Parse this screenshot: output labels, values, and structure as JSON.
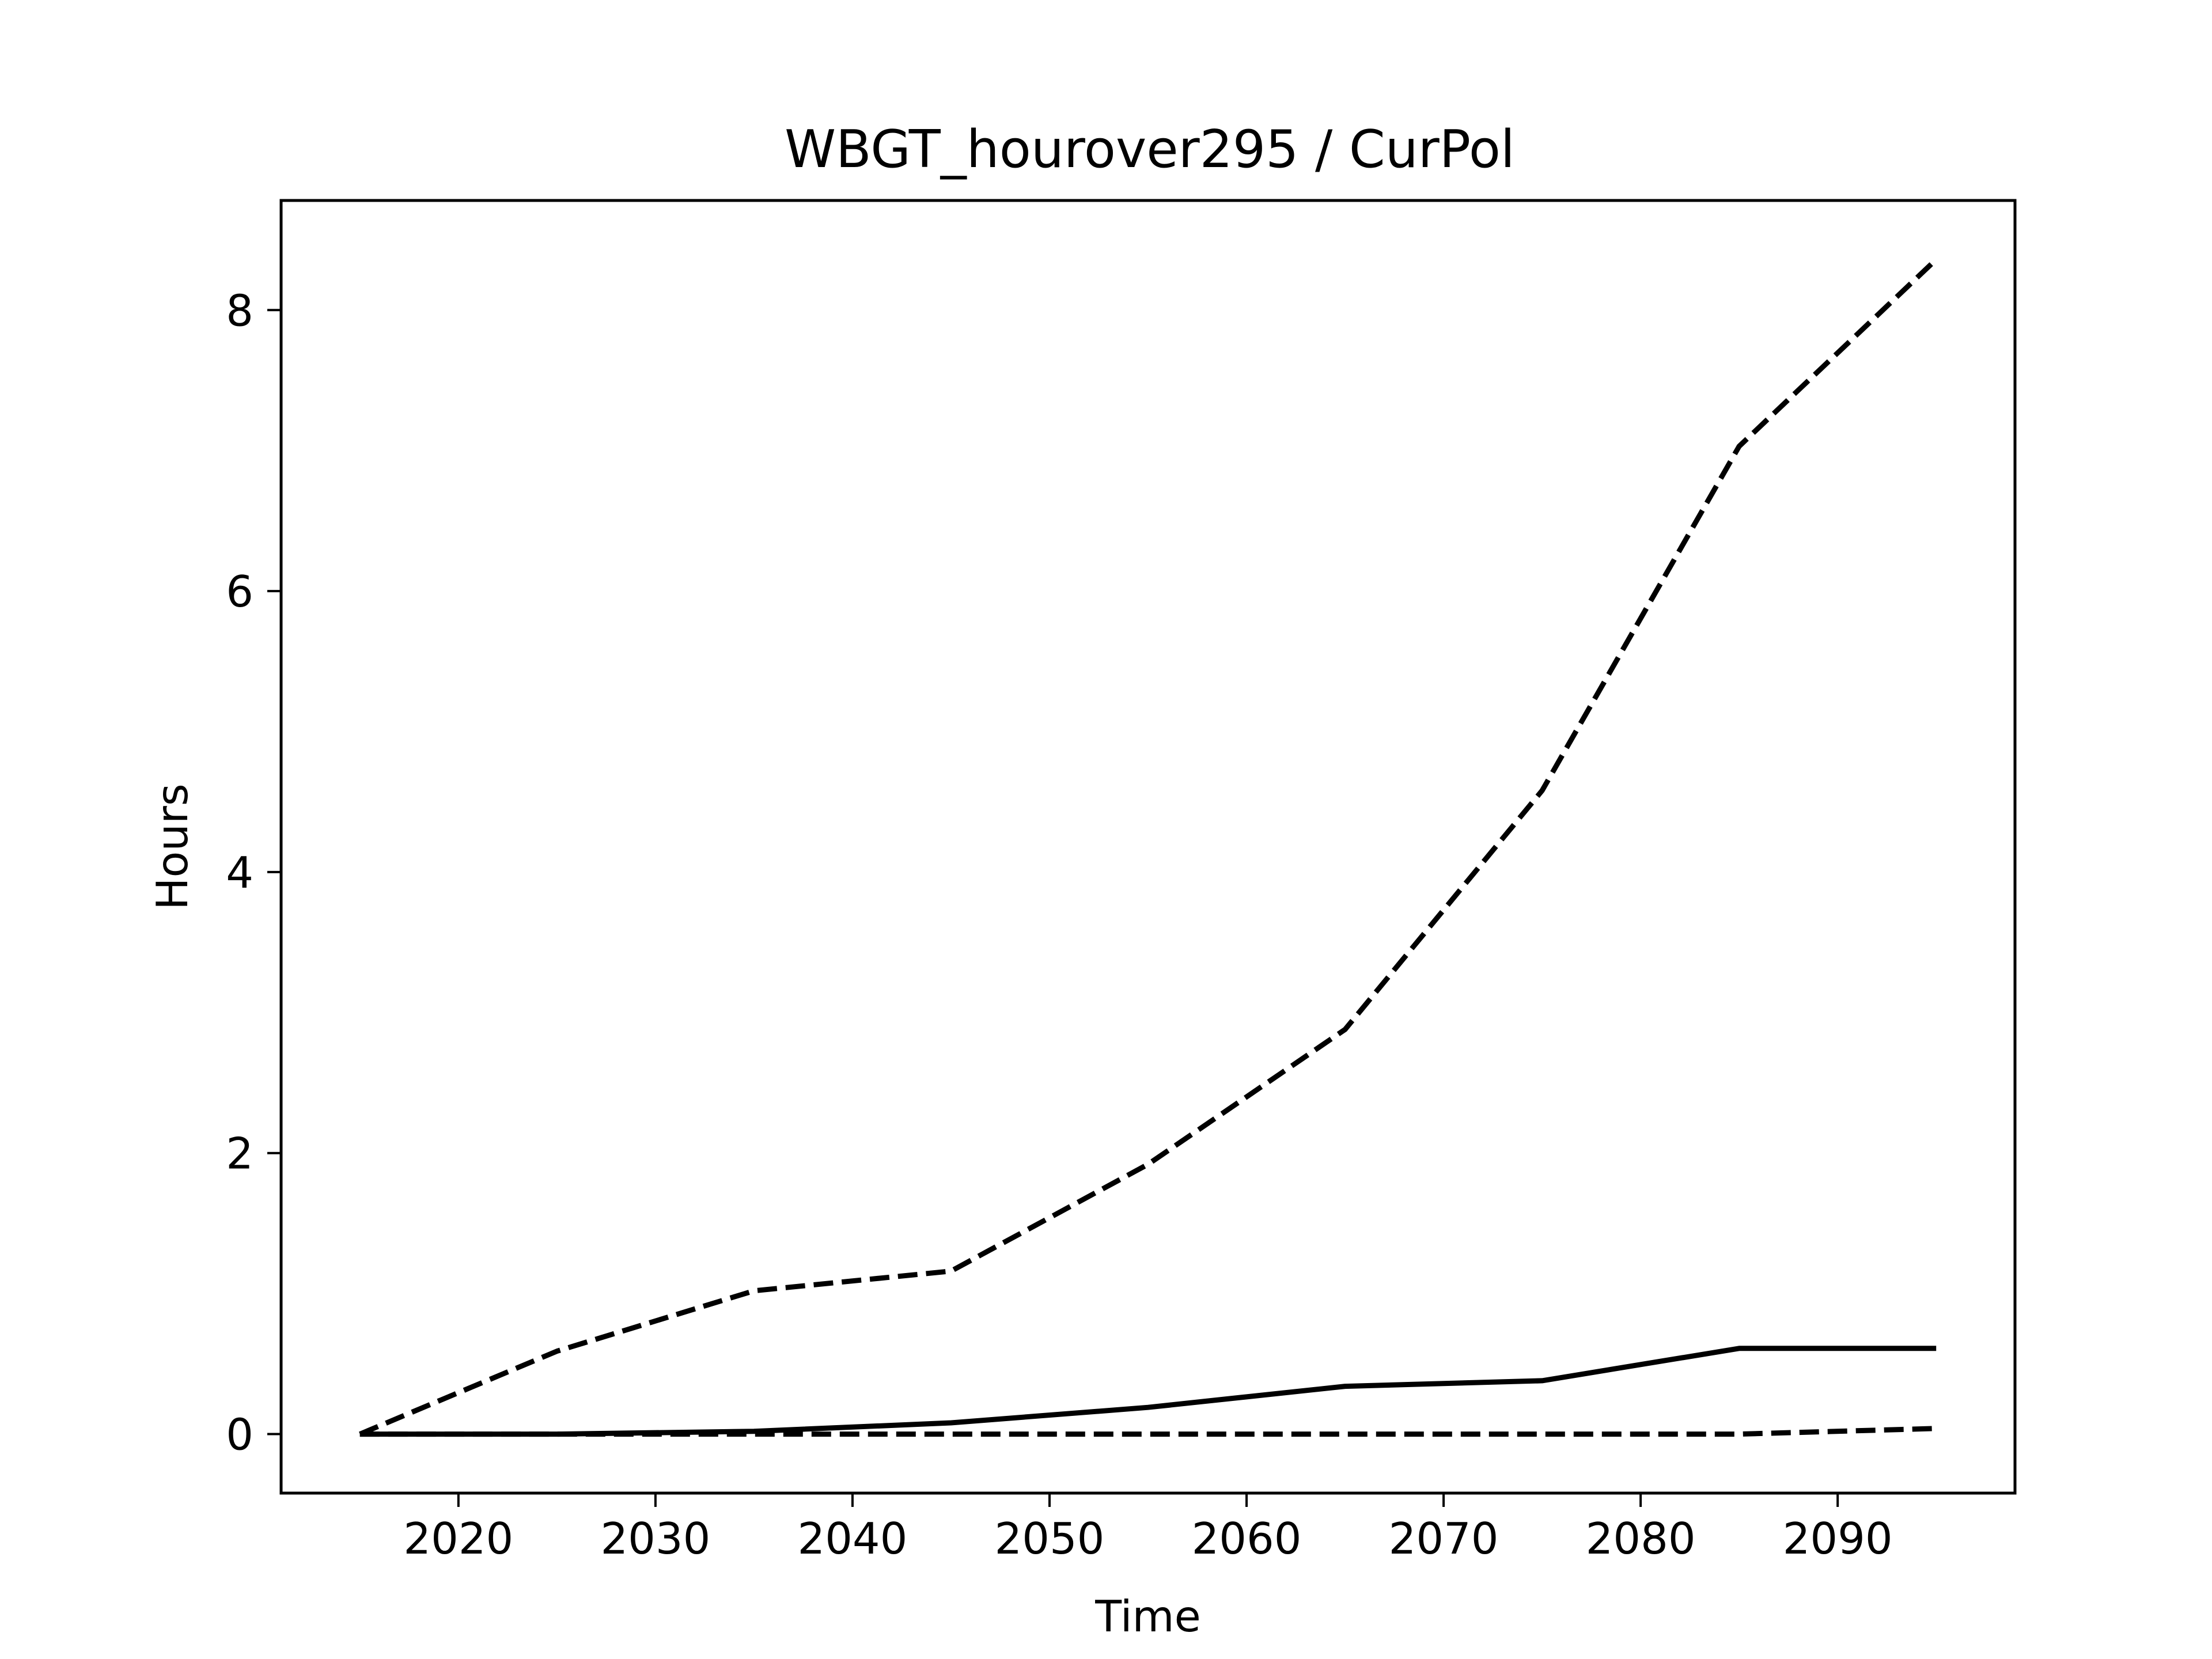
{
  "chart_data": {
    "type": "line",
    "title": "WBGT_hourover295 / CurPol",
    "xlabel": "Time",
    "ylabel": "Hours",
    "xlim": [
      2011,
      2099
    ],
    "ylim": [
      -0.42,
      8.78
    ],
    "x_ticks": [
      2020,
      2030,
      2040,
      2050,
      2060,
      2070,
      2080,
      2090
    ],
    "y_ticks": [
      0,
      2,
      4,
      6,
      8
    ],
    "x": [
      2015,
      2025,
      2035,
      2045,
      2055,
      2065,
      2075,
      2085,
      2095
    ],
    "series": [
      {
        "style": "dashed",
        "color": "#000000",
        "values": [
          0.0,
          0.59,
          1.02,
          1.16,
          1.92,
          2.88,
          4.58,
          7.03,
          8.36
        ]
      },
      {
        "style": "solid",
        "color": "#000000",
        "values": [
          0.0,
          0.0,
          0.02,
          0.08,
          0.19,
          0.34,
          0.38,
          0.61,
          0.61
        ]
      },
      {
        "style": "dashed",
        "color": "#000000",
        "values": [
          0.0,
          0.0,
          0.0,
          0.0,
          0.0,
          0.0,
          0.0,
          0.0,
          0.04
        ]
      }
    ],
    "grid": false,
    "legend": "none"
  }
}
